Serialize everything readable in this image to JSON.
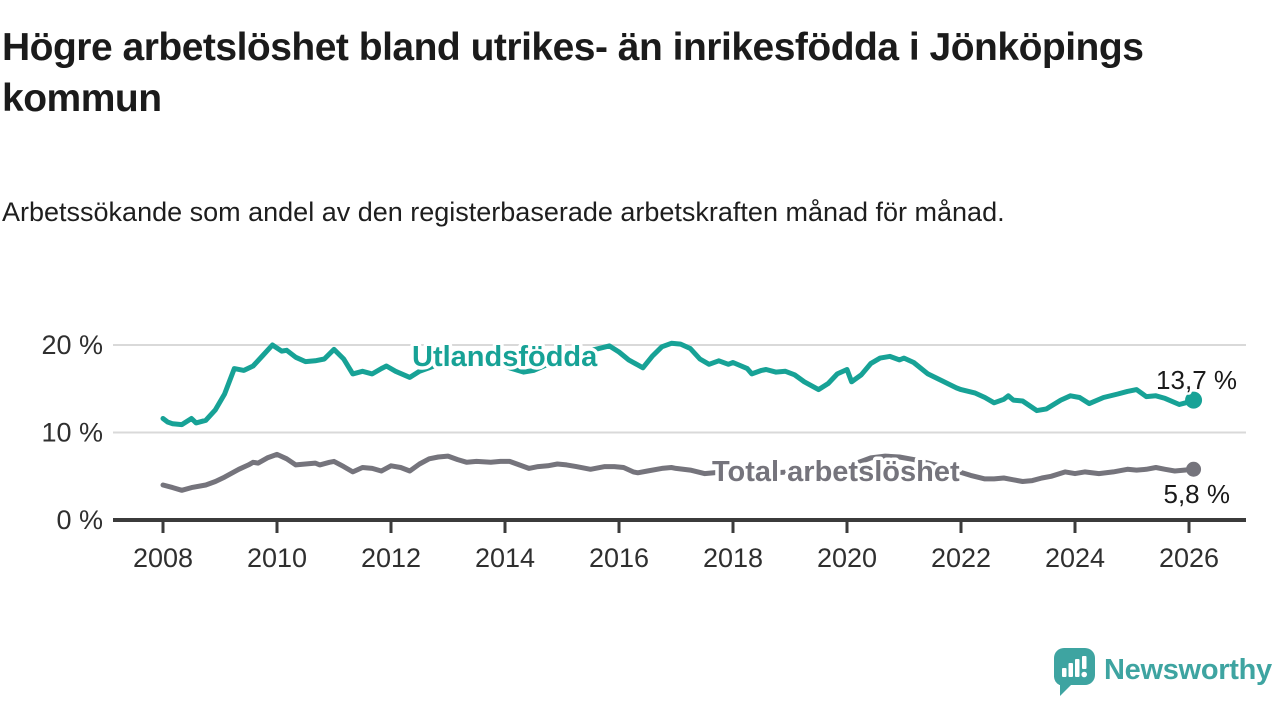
{
  "title": "Högre arbetslöshet bland utrikes- än inrikesfödda i Jönköpings kommun",
  "subtitle": "Arbetssökande som andel av den registerbaserade arbetskraften månad för månad.",
  "branding": {
    "logo_text": "Newsworthy",
    "logo_color": "#3EA4A1",
    "logo_icon": "speech-bubble-bar-chart-exclamation"
  },
  "chart_data": {
    "type": "line",
    "title": "Högre arbetslöshet bland utrikes- än inrikesfödda i Jönköpings kommun",
    "subtitle": "Arbetssökande som andel av den registerbaserade arbetskraften månad för månad.",
    "grid": "horizontal",
    "legend": "inline-labels",
    "colors": {
      "grid": "#D9D9D9",
      "axis": "#3B3B3B",
      "tick_text": "#2F2F2F"
    },
    "x_axis": {
      "unit": "year",
      "range": [
        2007.8,
        2027.0
      ],
      "ticks": [
        {
          "value": 2008,
          "label": "2008"
        },
        {
          "value": 2010,
          "label": "2010"
        },
        {
          "value": 2012,
          "label": "2012"
        },
        {
          "value": 2014,
          "label": "2014"
        },
        {
          "value": 2016,
          "label": "2016"
        },
        {
          "value": 2018,
          "label": "2018"
        },
        {
          "value": 2020,
          "label": "2020"
        },
        {
          "value": 2022,
          "label": "2022"
        },
        {
          "value": 2024,
          "label": "2024"
        },
        {
          "value": 2026,
          "label": "2026"
        }
      ]
    },
    "y_axis": {
      "unit": "%",
      "range": [
        0,
        22
      ],
      "ticks": [
        {
          "value": 0,
          "label": "0 %"
        },
        {
          "value": 10,
          "label": "10 %"
        },
        {
          "value": 20,
          "label": "20 %"
        }
      ]
    },
    "series": [
      {
        "name": "Utlandsfödda",
        "color": "#17A296",
        "end_value": 13.7,
        "end_label": "13,7 %",
        "points": [
          [
            2008.0,
            11.6
          ],
          [
            2008.08,
            11.2
          ],
          [
            2008.17,
            11.0
          ],
          [
            2008.33,
            10.9
          ],
          [
            2008.5,
            11.6
          ],
          [
            2008.58,
            11.1
          ],
          [
            2008.75,
            11.4
          ],
          [
            2008.92,
            12.6
          ],
          [
            2009.08,
            14.4
          ],
          [
            2009.25,
            17.3
          ],
          [
            2009.42,
            17.1
          ],
          [
            2009.58,
            17.6
          ],
          [
            2009.75,
            18.8
          ],
          [
            2009.92,
            20.0
          ],
          [
            2010.08,
            19.3
          ],
          [
            2010.17,
            19.4
          ],
          [
            2010.33,
            18.6
          ],
          [
            2010.5,
            18.1
          ],
          [
            2010.67,
            18.2
          ],
          [
            2010.83,
            18.4
          ],
          [
            2011.0,
            19.5
          ],
          [
            2011.17,
            18.4
          ],
          [
            2011.33,
            16.7
          ],
          [
            2011.5,
            17.0
          ],
          [
            2011.67,
            16.7
          ],
          [
            2011.83,
            17.3
          ],
          [
            2011.92,
            17.6
          ],
          [
            2012.08,
            17.0
          ],
          [
            2012.33,
            16.3
          ],
          [
            2012.5,
            17.0
          ],
          [
            2012.67,
            17.4
          ],
          [
            2012.83,
            17.8
          ],
          [
            2013.0,
            18.6
          ],
          [
            2013.17,
            19.0
          ],
          [
            2013.42,
            17.8
          ],
          [
            2013.58,
            18.2
          ],
          [
            2013.75,
            18.3
          ],
          [
            2013.92,
            17.8
          ],
          [
            2014.08,
            17.4
          ],
          [
            2014.33,
            16.9
          ],
          [
            2014.5,
            17.1
          ],
          [
            2014.75,
            17.8
          ],
          [
            2014.92,
            18.1
          ],
          [
            2015.08,
            18.5
          ],
          [
            2015.33,
            19.1
          ],
          [
            2015.58,
            19.5
          ],
          [
            2015.83,
            19.9
          ],
          [
            2016.0,
            19.2
          ],
          [
            2016.17,
            18.3
          ],
          [
            2016.42,
            17.4
          ],
          [
            2016.58,
            18.7
          ],
          [
            2016.75,
            19.8
          ],
          [
            2016.92,
            20.2
          ],
          [
            2017.08,
            20.1
          ],
          [
            2017.25,
            19.6
          ],
          [
            2017.42,
            18.4
          ],
          [
            2017.58,
            17.8
          ],
          [
            2017.75,
            18.2
          ],
          [
            2017.92,
            17.8
          ],
          [
            2018.0,
            18.0
          ],
          [
            2018.25,
            17.3
          ],
          [
            2018.33,
            16.7
          ],
          [
            2018.5,
            17.1
          ],
          [
            2018.58,
            17.2
          ],
          [
            2018.75,
            16.9
          ],
          [
            2018.92,
            17.0
          ],
          [
            2019.08,
            16.6
          ],
          [
            2019.25,
            15.8
          ],
          [
            2019.5,
            14.9
          ],
          [
            2019.67,
            15.6
          ],
          [
            2019.83,
            16.7
          ],
          [
            2020.0,
            17.2
          ],
          [
            2020.08,
            15.8
          ],
          [
            2020.25,
            16.6
          ],
          [
            2020.42,
            17.9
          ],
          [
            2020.58,
            18.5
          ],
          [
            2020.75,
            18.7
          ],
          [
            2020.92,
            18.3
          ],
          [
            2021.0,
            18.5
          ],
          [
            2021.17,
            18.0
          ],
          [
            2021.42,
            16.7
          ],
          [
            2021.67,
            15.9
          ],
          [
            2021.92,
            15.1
          ],
          [
            2022.0,
            14.9
          ],
          [
            2022.25,
            14.5
          ],
          [
            2022.42,
            14.0
          ],
          [
            2022.58,
            13.4
          ],
          [
            2022.75,
            13.8
          ],
          [
            2022.83,
            14.2
          ],
          [
            2022.92,
            13.7
          ],
          [
            2023.08,
            13.6
          ],
          [
            2023.33,
            12.5
          ],
          [
            2023.5,
            12.7
          ],
          [
            2023.75,
            13.7
          ],
          [
            2023.92,
            14.2
          ],
          [
            2024.08,
            14.0
          ],
          [
            2024.25,
            13.3
          ],
          [
            2024.5,
            14.0
          ],
          [
            2024.75,
            14.4
          ],
          [
            2024.92,
            14.7
          ],
          [
            2025.08,
            14.9
          ],
          [
            2025.25,
            14.1
          ],
          [
            2025.42,
            14.2
          ],
          [
            2025.58,
            13.9
          ],
          [
            2025.83,
            13.2
          ],
          [
            2026.0,
            13.5
          ],
          [
            2026.08,
            13.7
          ]
        ]
      },
      {
        "name": "Total arbetslöshet",
        "color": "#75747C",
        "end_value": 5.8,
        "end_label": "5,8 %",
        "points": [
          [
            2008.0,
            4.0
          ],
          [
            2008.17,
            3.7
          ],
          [
            2008.33,
            3.4
          ],
          [
            2008.5,
            3.7
          ],
          [
            2008.75,
            4.0
          ],
          [
            2008.92,
            4.4
          ],
          [
            2009.08,
            4.9
          ],
          [
            2009.33,
            5.8
          ],
          [
            2009.5,
            6.3
          ],
          [
            2009.58,
            6.6
          ],
          [
            2009.67,
            6.5
          ],
          [
            2009.83,
            7.1
          ],
          [
            2010.0,
            7.5
          ],
          [
            2010.17,
            7.0
          ],
          [
            2010.33,
            6.3
          ],
          [
            2010.5,
            6.4
          ],
          [
            2010.67,
            6.5
          ],
          [
            2010.75,
            6.3
          ],
          [
            2010.92,
            6.6
          ],
          [
            2011.0,
            6.7
          ],
          [
            2011.17,
            6.1
          ],
          [
            2011.33,
            5.5
          ],
          [
            2011.5,
            6.0
          ],
          [
            2011.67,
            5.9
          ],
          [
            2011.83,
            5.6
          ],
          [
            2012.0,
            6.2
          ],
          [
            2012.17,
            6.0
          ],
          [
            2012.33,
            5.6
          ],
          [
            2012.5,
            6.4
          ],
          [
            2012.67,
            7.0
          ],
          [
            2012.83,
            7.2
          ],
          [
            2013.0,
            7.3
          ],
          [
            2013.17,
            6.9
          ],
          [
            2013.33,
            6.6
          ],
          [
            2013.5,
            6.7
          ],
          [
            2013.75,
            6.6
          ],
          [
            2013.92,
            6.7
          ],
          [
            2014.08,
            6.7
          ],
          [
            2014.25,
            6.3
          ],
          [
            2014.42,
            5.9
          ],
          [
            2014.58,
            6.1
          ],
          [
            2014.75,
            6.2
          ],
          [
            2014.92,
            6.4
          ],
          [
            2015.08,
            6.3
          ],
          [
            2015.25,
            6.1
          ],
          [
            2015.5,
            5.8
          ],
          [
            2015.75,
            6.1
          ],
          [
            2015.92,
            6.1
          ],
          [
            2016.08,
            6.0
          ],
          [
            2016.25,
            5.5
          ],
          [
            2016.33,
            5.4
          ],
          [
            2016.5,
            5.6
          ],
          [
            2016.75,
            5.9
          ],
          [
            2016.92,
            6.0
          ],
          [
            2017.0,
            5.9
          ],
          [
            2017.25,
            5.7
          ],
          [
            2017.5,
            5.3
          ],
          [
            2017.67,
            5.4
          ],
          [
            2017.83,
            5.5
          ],
          [
            2018.0,
            5.4
          ],
          [
            2018.25,
            5.2
          ],
          [
            2018.5,
            5.3
          ],
          [
            2018.75,
            5.4
          ],
          [
            2019.0,
            5.5
          ],
          [
            2019.33,
            5.7
          ],
          [
            2019.67,
            5.9
          ],
          [
            2020.0,
            6.1
          ],
          [
            2020.17,
            6.5
          ],
          [
            2020.42,
            7.1
          ],
          [
            2020.67,
            7.3
          ],
          [
            2020.92,
            7.2
          ],
          [
            2021.17,
            6.9
          ],
          [
            2021.42,
            6.5
          ],
          [
            2021.67,
            6.1
          ],
          [
            2021.92,
            5.6
          ],
          [
            2022.17,
            5.1
          ],
          [
            2022.42,
            4.7
          ],
          [
            2022.58,
            4.7
          ],
          [
            2022.75,
            4.8
          ],
          [
            2022.92,
            4.6
          ],
          [
            2023.08,
            4.4
          ],
          [
            2023.25,
            4.5
          ],
          [
            2023.42,
            4.8
          ],
          [
            2023.58,
            5.0
          ],
          [
            2023.83,
            5.5
          ],
          [
            2024.0,
            5.3
          ],
          [
            2024.17,
            5.5
          ],
          [
            2024.42,
            5.3
          ],
          [
            2024.67,
            5.5
          ],
          [
            2024.92,
            5.8
          ],
          [
            2025.08,
            5.7
          ],
          [
            2025.25,
            5.8
          ],
          [
            2025.42,
            6.0
          ],
          [
            2025.58,
            5.8
          ],
          [
            2025.75,
            5.6
          ],
          [
            2025.92,
            5.7
          ],
          [
            2026.08,
            5.8
          ]
        ]
      }
    ]
  }
}
